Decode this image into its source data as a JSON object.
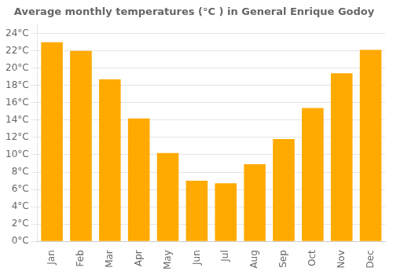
{
  "chart_data": {
    "type": "bar",
    "title": "Average monthly temperatures (°C ) in General Enrique Godoy",
    "categories": [
      "Jan",
      "Feb",
      "Mar",
      "Apr",
      "May",
      "Jun",
      "Jul",
      "Aug",
      "Sep",
      "Oct",
      "Nov",
      "Dec"
    ],
    "values": [
      23.0,
      22.0,
      18.7,
      14.2,
      10.2,
      7.0,
      6.7,
      8.9,
      11.8,
      15.4,
      19.4,
      22.1
    ],
    "color": "#FFAA00",
    "ylim": [
      0,
      25
    ],
    "yticks": [
      {
        "value": 0,
        "label": "0°C"
      },
      {
        "value": 2,
        "label": "2°C"
      },
      {
        "value": 4,
        "label": "4°C"
      },
      {
        "value": 6,
        "label": "6°C"
      },
      {
        "value": 8,
        "label": "8°C"
      },
      {
        "value": 10,
        "label": "10°C"
      },
      {
        "value": 12,
        "label": "12°C"
      },
      {
        "value": 14,
        "label": "14°C"
      },
      {
        "value": 16,
        "label": "16°C"
      },
      {
        "value": 18,
        "label": "18°C"
      },
      {
        "value": 20,
        "label": "20°C"
      },
      {
        "value": 22,
        "label": "22°C"
      },
      {
        "value": 24,
        "label": "24°C"
      }
    ],
    "grid": true
  }
}
